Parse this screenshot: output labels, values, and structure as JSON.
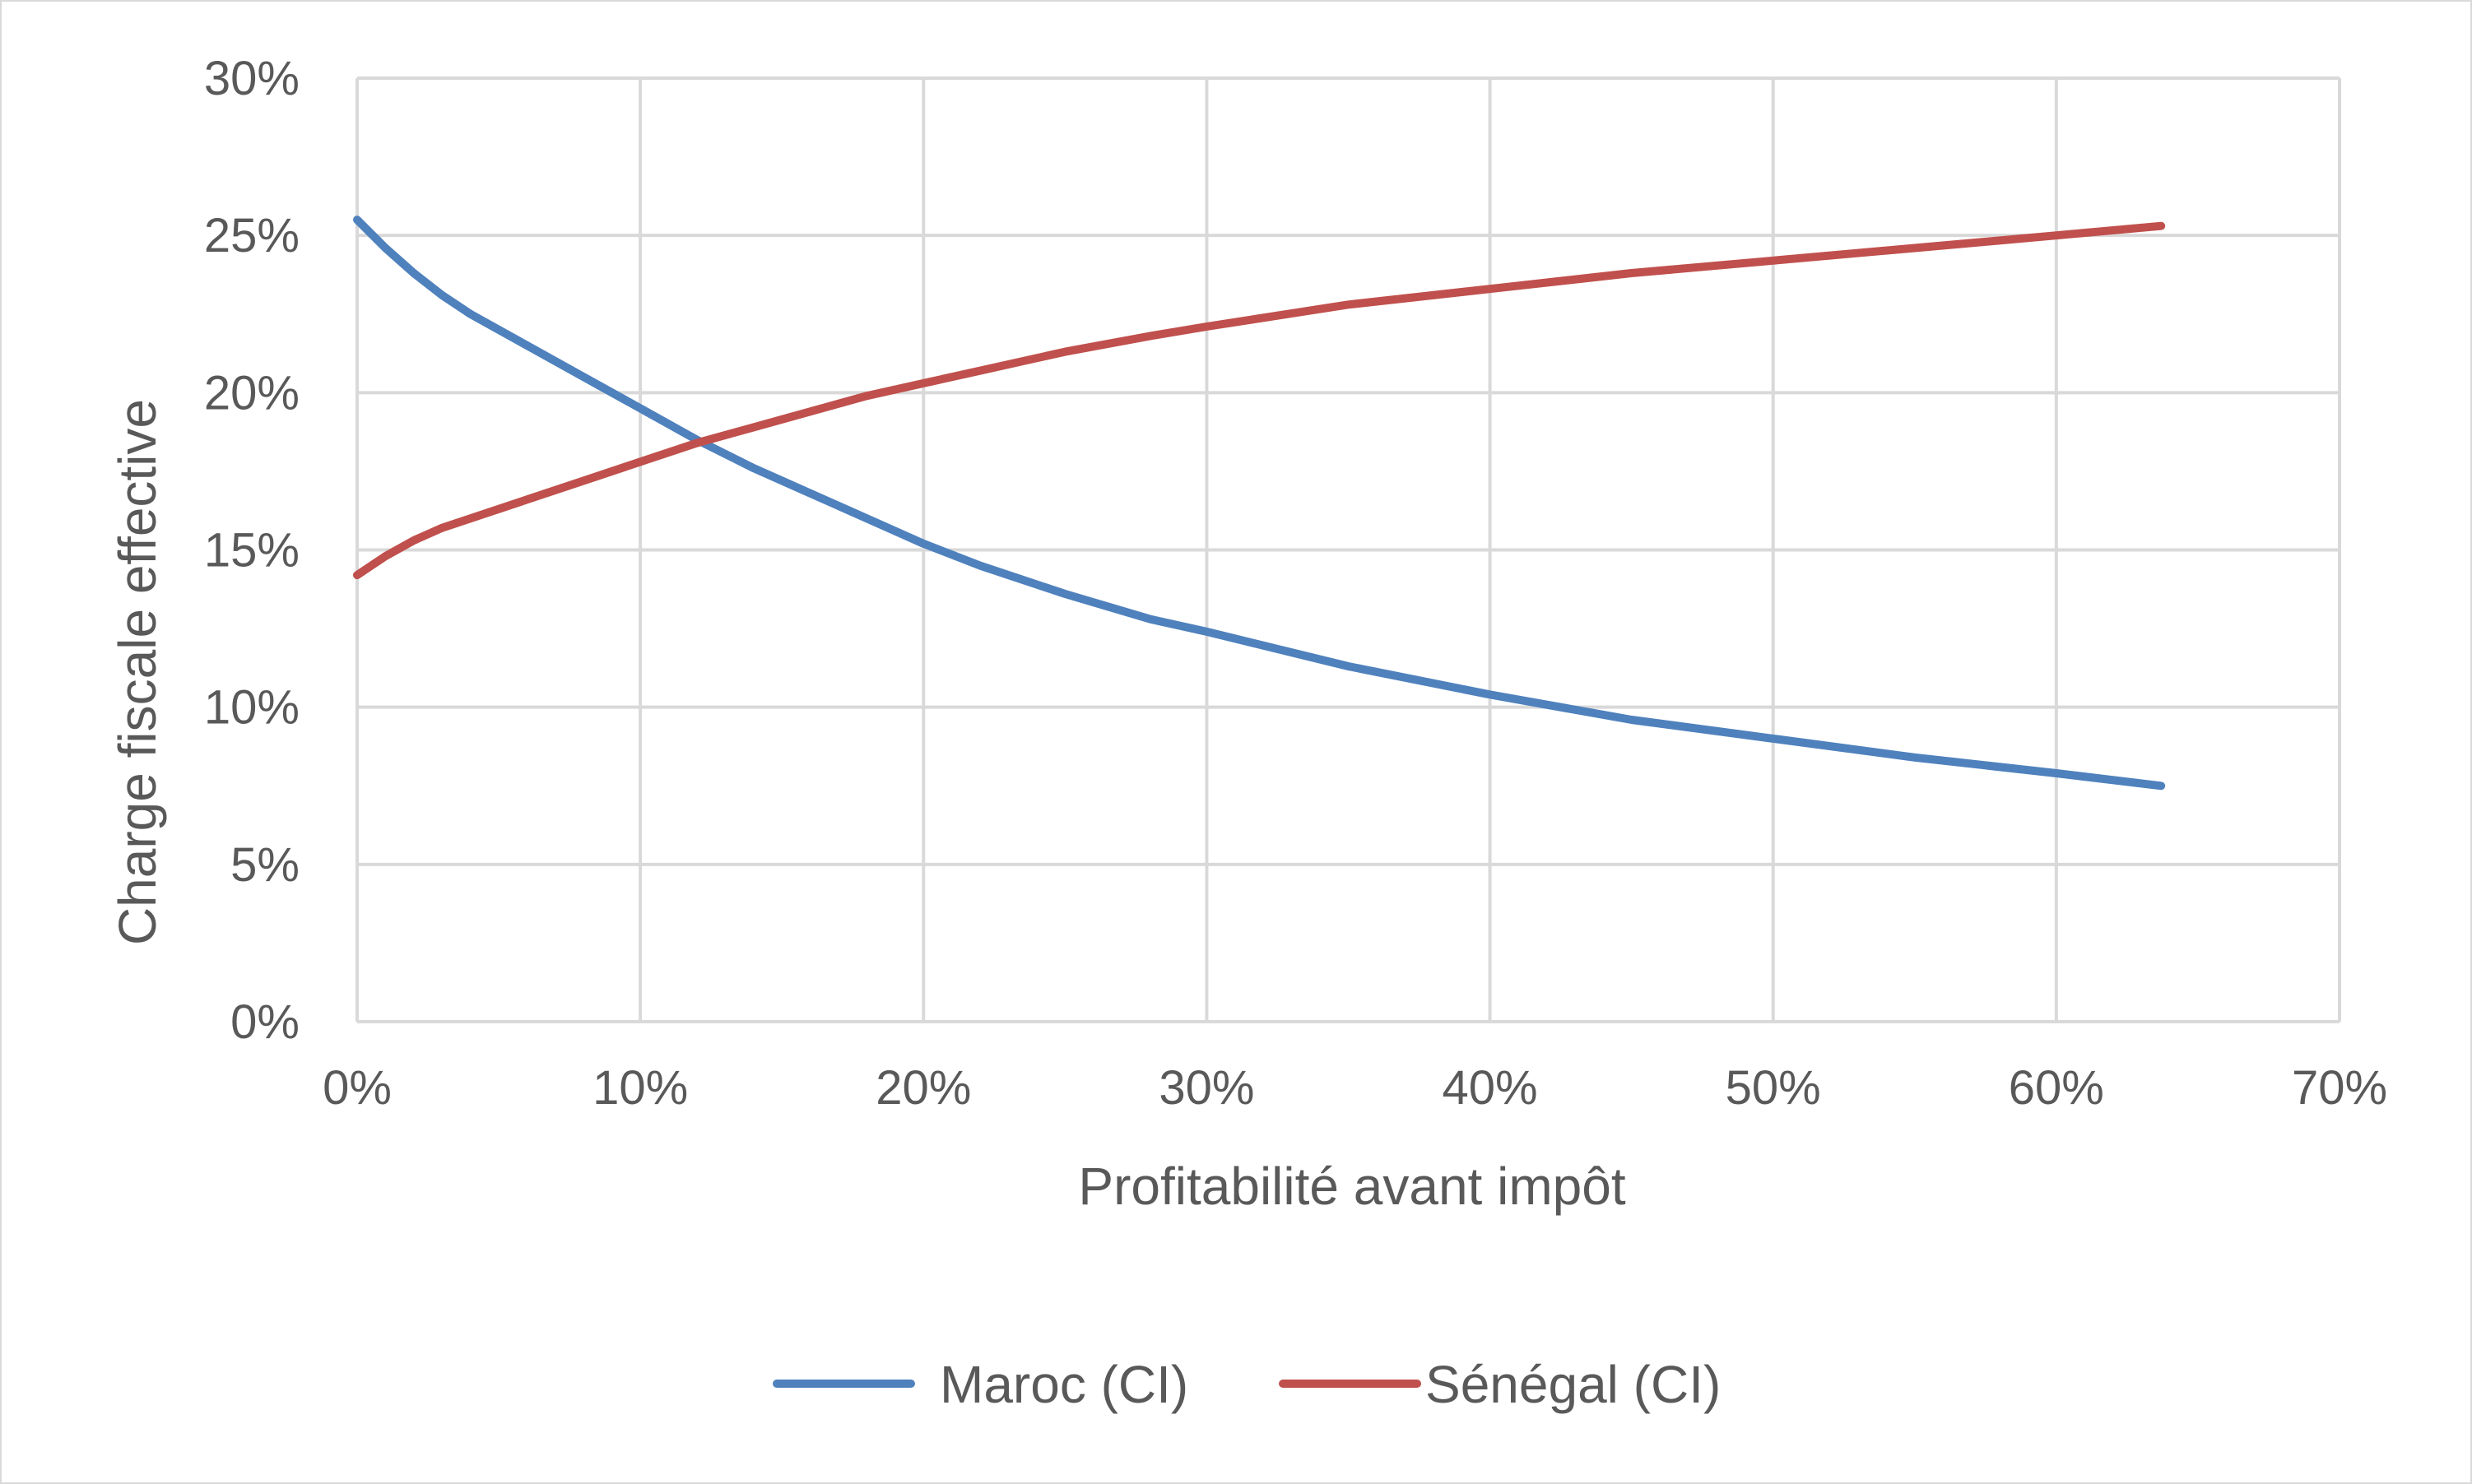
{
  "chart_data": {
    "type": "line",
    "title": "",
    "xlabel": "Profitabilité avant impôt",
    "ylabel": "Charge fiscale effective",
    "xlim": [
      0,
      70
    ],
    "ylim": [
      0,
      30
    ],
    "x_ticks": [
      "0%",
      "10%",
      "20%",
      "30%",
      "40%",
      "50%",
      "60%",
      "70%"
    ],
    "y_ticks": [
      "0%",
      "5%",
      "10%",
      "15%",
      "20%",
      "25%",
      "30%"
    ],
    "x_tick_values": [
      0,
      10,
      20,
      30,
      40,
      50,
      60,
      70
    ],
    "y_tick_values": [
      0,
      5,
      10,
      15,
      20,
      25,
      30
    ],
    "grid": true,
    "legend_position": "bottom",
    "series": [
      {
        "name": "Maroc (CI)",
        "color": "#4f81bd",
        "points": [
          [
            0,
            25.5
          ],
          [
            1,
            24.6
          ],
          [
            2,
            23.8
          ],
          [
            3,
            23.1
          ],
          [
            4,
            22.5
          ],
          [
            6,
            21.5
          ],
          [
            8,
            20.5
          ],
          [
            10,
            19.5
          ],
          [
            12,
            18.5
          ],
          [
            14,
            17.6
          ],
          [
            16,
            16.8
          ],
          [
            18,
            16.0
          ],
          [
            20,
            15.2
          ],
          [
            22,
            14.5
          ],
          [
            25,
            13.6
          ],
          [
            28,
            12.8
          ],
          [
            30,
            12.4
          ],
          [
            35,
            11.3
          ],
          [
            40,
            10.4
          ],
          [
            45,
            9.6
          ],
          [
            50,
            9.0
          ],
          [
            55,
            8.4
          ],
          [
            60,
            7.9
          ],
          [
            63.7,
            7.5
          ]
        ]
      },
      {
        "name": "Sénégal (CI)",
        "color": "#c0504d",
        "points": [
          [
            0,
            14.2
          ],
          [
            1,
            14.8
          ],
          [
            2,
            15.3
          ],
          [
            3,
            15.7
          ],
          [
            4,
            16.0
          ],
          [
            6,
            16.6
          ],
          [
            8,
            17.2
          ],
          [
            10,
            17.8
          ],
          [
            12,
            18.4
          ],
          [
            14,
            18.9
          ],
          [
            16,
            19.4
          ],
          [
            18,
            19.9
          ],
          [
            20,
            20.3
          ],
          [
            22,
            20.7
          ],
          [
            25,
            21.3
          ],
          [
            28,
            21.8
          ],
          [
            30,
            22.1
          ],
          [
            35,
            22.8
          ],
          [
            40,
            23.3
          ],
          [
            45,
            23.8
          ],
          [
            50,
            24.2
          ],
          [
            55,
            24.6
          ],
          [
            60,
            25.0
          ],
          [
            63.7,
            25.3
          ]
        ]
      }
    ]
  }
}
